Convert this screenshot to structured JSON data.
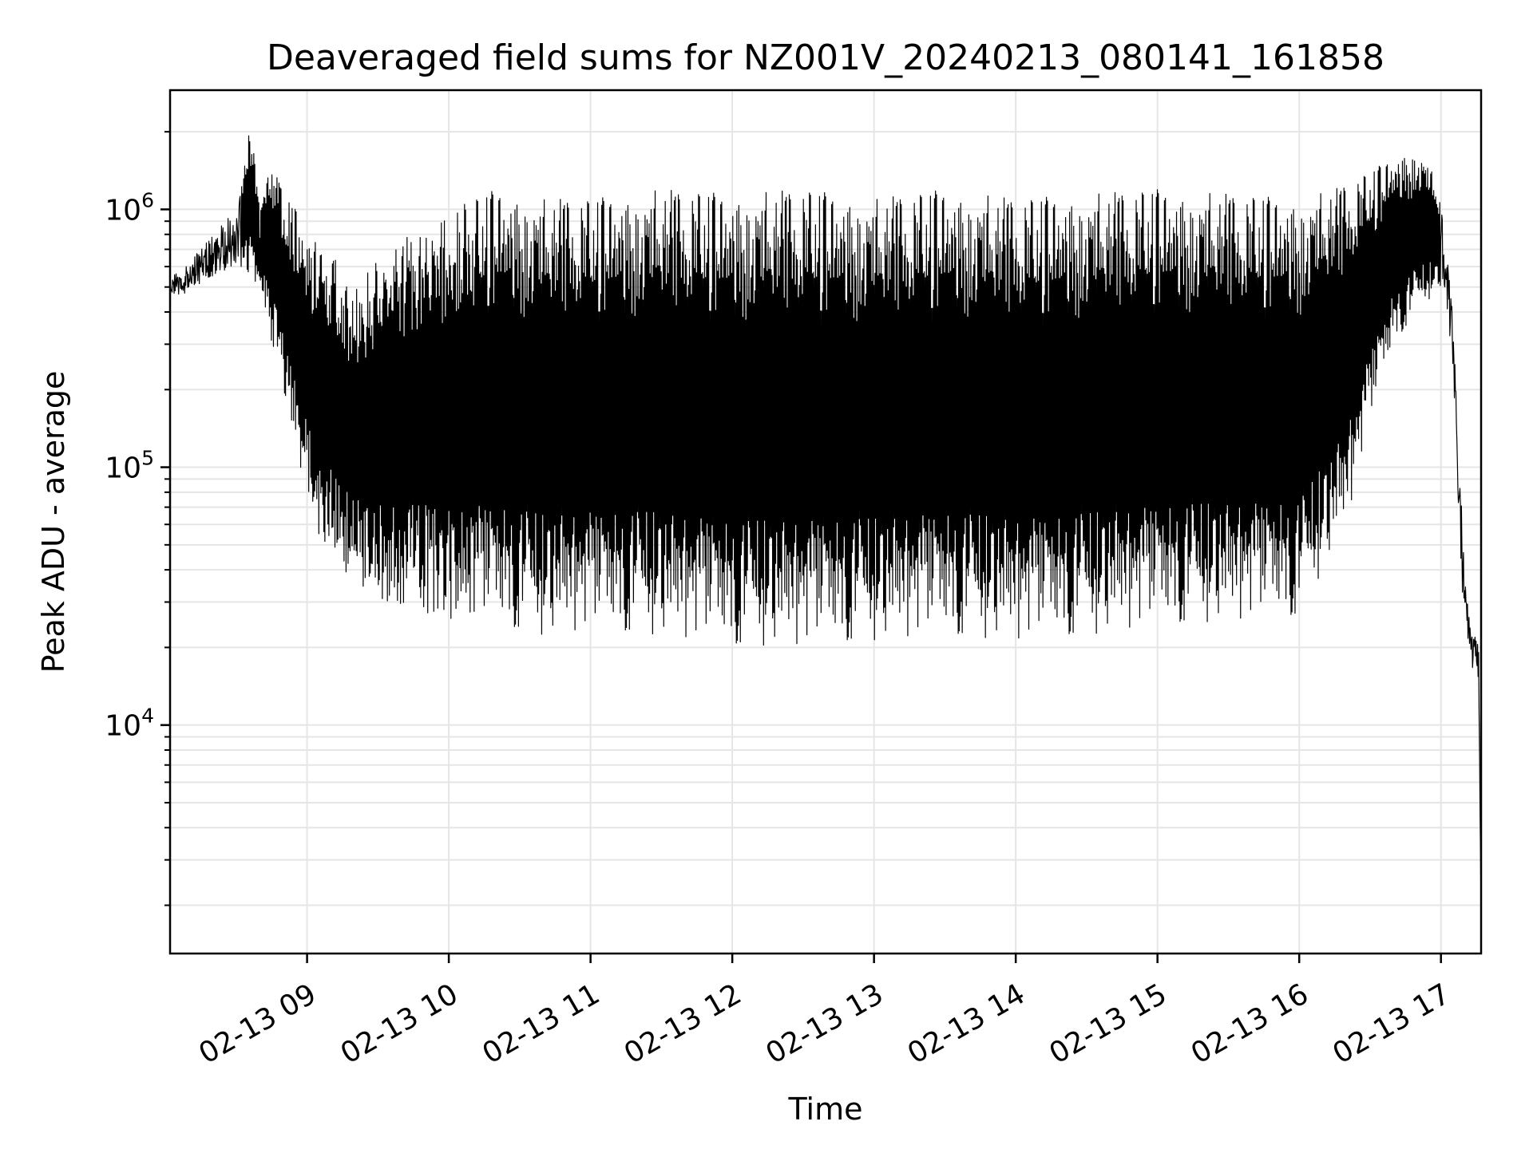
{
  "chart_data": {
    "type": "line",
    "title": "Deaveraged field sums for NZ001V_20240213_080141_161858",
    "xlabel": "Time",
    "ylabel": "Peak ADU - average",
    "xscale": "time",
    "yscale": "log",
    "xlim": [
      "2024-02-13 08:02",
      "2024-02-13 17:17"
    ],
    "ylim": [
      1300,
      2900000
    ],
    "grid": true,
    "legend": "none",
    "colors": {
      "line": "#000000",
      "grid": "#e5e5e5",
      "axes": "#000000"
    },
    "x_ticks": [
      {
        "t": "2024-02-13 09:00",
        "label": "02-13 09"
      },
      {
        "t": "2024-02-13 10:00",
        "label": "02-13 10"
      },
      {
        "t": "2024-02-13 11:00",
        "label": "02-13 11"
      },
      {
        "t": "2024-02-13 12:00",
        "label": "02-13 12"
      },
      {
        "t": "2024-02-13 13:00",
        "label": "02-13 13"
      },
      {
        "t": "2024-02-13 14:00",
        "label": "02-13 14"
      },
      {
        "t": "2024-02-13 15:00",
        "label": "02-13 15"
      },
      {
        "t": "2024-02-13 16:00",
        "label": "02-13 16"
      },
      {
        "t": "2024-02-13 17:00",
        "label": "02-13 17"
      }
    ],
    "y_ticks": [
      {
        "value": 10000,
        "base": "10",
        "exp": "4"
      },
      {
        "value": 100000,
        "base": "10",
        "exp": "5"
      },
      {
        "value": 1000000,
        "base": "10",
        "exp": "6"
      }
    ],
    "series": [
      {
        "upper_envelope": {
          "x": [
            "2024-02-13 08:02",
            "2024-02-13 08:10",
            "2024-02-13 08:20",
            "2024-02-13 08:30",
            "2024-02-13 08:36",
            "2024-02-13 08:40",
            "2024-02-13 08:45",
            "2024-02-13 08:50",
            "2024-02-13 08:55",
            "2024-02-13 09:00",
            "2024-02-13 09:10",
            "2024-02-13 09:20",
            "2024-02-13 09:30",
            "2024-02-13 09:40",
            "2024-02-13 09:50",
            "2024-02-13 10:00",
            "2024-02-13 10:10",
            "2024-02-13 10:20",
            "2024-02-13 10:40",
            "2024-02-13 11:00",
            "2024-02-13 11:30",
            "2024-02-13 12:00",
            "2024-02-13 12:30",
            "2024-02-13 13:00",
            "2024-02-13 13:30",
            "2024-02-13 14:00",
            "2024-02-13 14:30",
            "2024-02-13 15:00",
            "2024-02-13 15:30",
            "2024-02-13 16:00",
            "2024-02-13 16:15",
            "2024-02-13 16:30",
            "2024-02-13 16:40",
            "2024-02-13 16:50",
            "2024-02-13 16:55",
            "2024-02-13 17:00",
            "2024-02-13 17:05",
            "2024-02-13 17:08",
            "2024-02-13 17:12",
            "2024-02-13 17:16",
            "2024-02-13 17:17"
          ],
          "y": [
            550000,
            620000,
            800000,
            1000000,
            2200000,
            1100000,
            1600000,
            1200000,
            1000000,
            800000,
            700000,
            500000,
            700000,
            800000,
            850000,
            1000000,
            1100000,
            1200000,
            1100000,
            1100000,
            1200000,
            1150000,
            1200000,
            1100000,
            1200000,
            1100000,
            1150000,
            1200000,
            1150000,
            1100000,
            1200000,
            1400000,
            1600000,
            1700000,
            1500000,
            1100000,
            400000,
            90000,
            26000,
            20000,
            1800
          ]
        },
        "lower_envelope": {
          "x": [
            "2024-02-13 08:02",
            "2024-02-13 08:10",
            "2024-02-13 08:20",
            "2024-02-13 08:30",
            "2024-02-13 08:40",
            "2024-02-13 08:45",
            "2024-02-13 08:50",
            "2024-02-13 08:55",
            "2024-02-13 09:00",
            "2024-02-13 09:05",
            "2024-02-13 09:15",
            "2024-02-13 09:30",
            "2024-02-13 09:45",
            "2024-02-13 10:00",
            "2024-02-13 10:20",
            "2024-02-13 10:40",
            "2024-02-13 11:00",
            "2024-02-13 11:30",
            "2024-02-13 12:00",
            "2024-02-13 12:30",
            "2024-02-13 13:00",
            "2024-02-13 13:30",
            "2024-02-13 14:00",
            "2024-02-13 14:30",
            "2024-02-13 15:00",
            "2024-02-13 15:30",
            "2024-02-13 16:00",
            "2024-02-13 16:20",
            "2024-02-13 16:30",
            "2024-02-13 16:40",
            "2024-02-13 16:50",
            "2024-02-13 17:00",
            "2024-02-13 17:05",
            "2024-02-13 17:08",
            "2024-02-13 17:12",
            "2024-02-13 17:16",
            "2024-02-13 17:17"
          ],
          "y": [
            450000,
            480000,
            550000,
            600000,
            500000,
            300000,
            200000,
            120000,
            80000,
            55000,
            40000,
            30000,
            28000,
            26000,
            24000,
            22000,
            23000,
            22000,
            20000,
            20000,
            21000,
            22000,
            21000,
            22000,
            24000,
            25000,
            26000,
            60000,
            150000,
            300000,
            400000,
            500000,
            250000,
            40000,
            18000,
            13000,
            1800
          ]
        }
      }
    ]
  }
}
